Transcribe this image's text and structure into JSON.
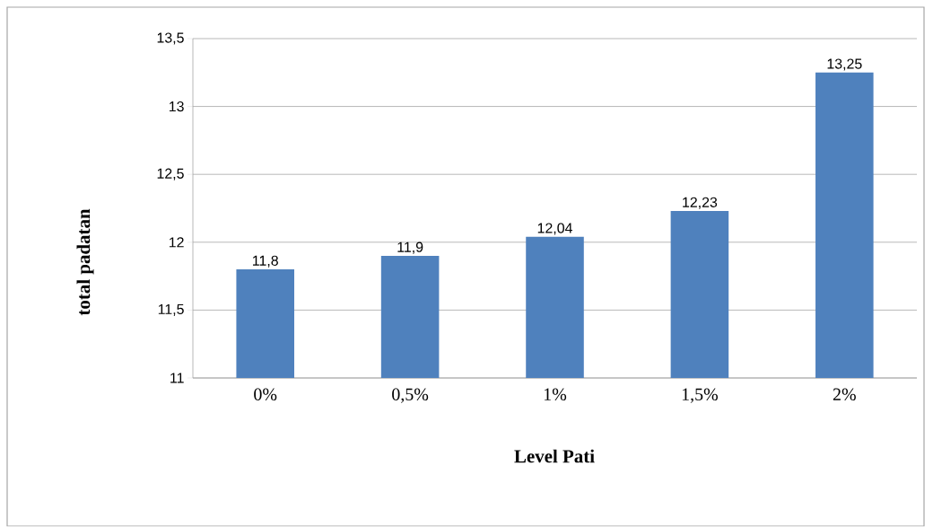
{
  "chart_data": {
    "type": "bar",
    "xlabel": "Level Pati",
    "ylabel": "total padatan",
    "categories": [
      "0%",
      "0,5%",
      "1%",
      "1,5%",
      "2%"
    ],
    "values": [
      11.8,
      11.9,
      12.04,
      12.23,
      13.25
    ],
    "value_labels": [
      "11,8",
      "11,9",
      "12,04",
      "12,23",
      "13,25"
    ],
    "color": "#4f81bd",
    "ylim": [
      11,
      13.5
    ],
    "yticks": [
      11,
      {
        "value": 11.5,
        "label": "11,5"
      },
      12,
      {
        "value": 12.5,
        "label": "12,5"
      },
      13,
      {
        "value": 13.5,
        "label": "13,5"
      }
    ],
    "grid": "y"
  }
}
